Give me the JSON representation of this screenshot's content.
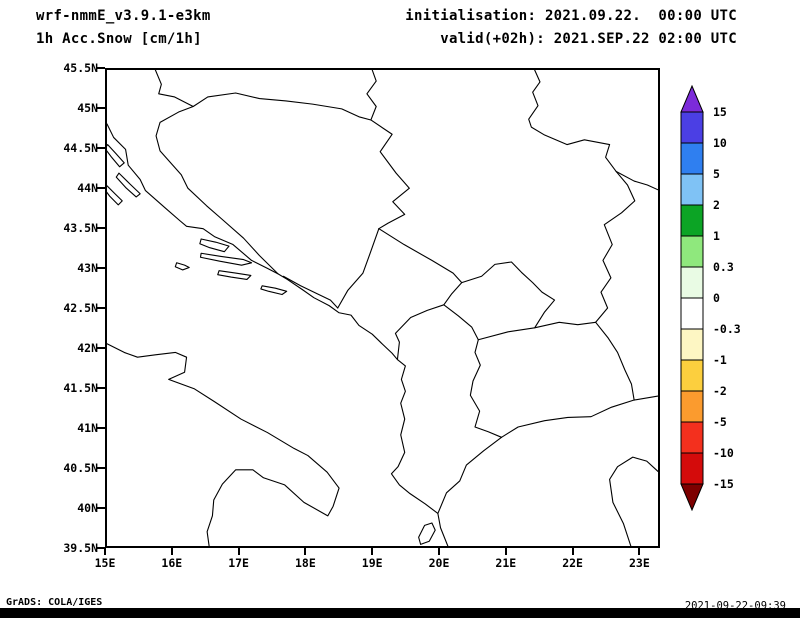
{
  "header": {
    "model_line": "wrf-nmmE_v3.9.1-e3km",
    "variable_line": "1h Acc.Snow [cm/1h]",
    "init_line": "initialisation: 2021.09.22.  00:00 UTC",
    "valid_line": "valid(+02h): 2021.SEP.22 02:00 UTC"
  },
  "map": {
    "lat_ticks": [
      "45.5N",
      "45N",
      "44.5N",
      "44N",
      "43.5N",
      "43N",
      "42.5N",
      "42N",
      "41.5N",
      "41N",
      "40.5N",
      "40N",
      "39.5N"
    ],
    "lon_ticks": [
      "15E",
      "16E",
      "17E",
      "18E",
      "19E",
      "20E",
      "21E",
      "22E",
      "23E"
    ],
    "region": "Adriatic / Balkans"
  },
  "colorbar": {
    "labels": [
      "15",
      "10",
      "5",
      "2",
      "1",
      "0.3",
      "0",
      "-0.3",
      "-1",
      "-2",
      "-5",
      "-10",
      "-15"
    ],
    "colors": [
      "#7c2bd9",
      "#4b3fe4",
      "#2f7ff0",
      "#7fc2f5",
      "#0ca425",
      "#8fe87d",
      "#e9fbe4",
      "#ffffff",
      "#fdf6c3",
      "#fccf3e",
      "#fb9b2e",
      "#f3301e",
      "#d40b0b",
      "#7d0000"
    ]
  },
  "footer": {
    "credit": "GrADS: COLA/IGES",
    "timestamp": "2021-09-22-09:39"
  },
  "chart_data": {
    "type": "heatmap",
    "title": "1h Acc.Snow [cm/1h]",
    "model": "wrf-nmmE_v3.9.1-e3km",
    "initialisation": "2021.09.22. 00:00 UTC",
    "valid": "valid(+02h): 2021.SEP.22 02:00 UTC",
    "xlabel": "longitude",
    "ylabel": "latitude",
    "x_ticks": [
      "15E",
      "16E",
      "17E",
      "18E",
      "19E",
      "20E",
      "21E",
      "22E",
      "23E"
    ],
    "y_ticks": [
      "39.5N",
      "40N",
      "40.5N",
      "41N",
      "41.5N",
      "42N",
      "42.5N",
      "43N",
      "43.5N",
      "44N",
      "44.5N",
      "45N",
      "45.5N"
    ],
    "xlim": [
      "15E",
      "23.3E"
    ],
    "ylim": [
      "39.5N",
      "45.5N"
    ],
    "colorbar_levels": [
      15,
      10,
      5,
      2,
      1,
      0.3,
      0,
      -0.3,
      -1,
      -2,
      -5,
      -10,
      -15
    ],
    "values": "no shaded snow-accumulation contours present; field effectively zero over the whole domain",
    "grid": false,
    "legend_position": "right vertical colorbar with out-of-range arrows"
  }
}
